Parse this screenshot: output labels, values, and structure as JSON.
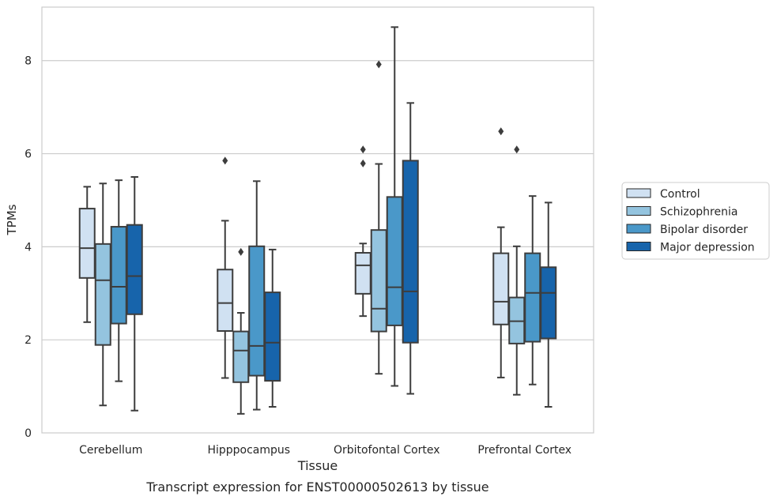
{
  "chart_data": {
    "type": "box",
    "caption": "Transcript expression for ENST00000502613 by tissue",
    "xlabel": "Tissue",
    "ylabel": "TPMs",
    "ylim": [
      0,
      9.15
    ],
    "yticks": [
      0,
      2,
      4,
      6,
      8
    ],
    "grid": true,
    "legend_position": "right",
    "categories": [
      "Cerebellum",
      "Hipppocampus",
      "Orbitofontal Cortex",
      "Prefrontal Cortex"
    ],
    "series": [
      {
        "name": "Control",
        "color": "#d0e1f2",
        "boxes": [
          {
            "whislo": 2.38,
            "q1": 3.33,
            "med": 3.97,
            "q3": 4.82,
            "whishi": 5.29,
            "fliers": []
          },
          {
            "whislo": 1.18,
            "q1": 2.19,
            "med": 2.79,
            "q3": 3.51,
            "whishi": 4.56,
            "fliers": [
              5.85
            ]
          },
          {
            "whislo": 2.51,
            "q1": 2.99,
            "med": 3.6,
            "q3": 3.87,
            "whishi": 4.07,
            "fliers": [
              5.79,
              6.09
            ]
          },
          {
            "whislo": 1.19,
            "q1": 2.33,
            "med": 2.82,
            "q3": 3.86,
            "whishi": 4.42,
            "fliers": [
              6.48
            ]
          }
        ]
      },
      {
        "name": "Schizophrenia",
        "color": "#94c4df",
        "boxes": [
          {
            "whislo": 0.59,
            "q1": 1.89,
            "med": 3.28,
            "q3": 4.06,
            "whishi": 5.36,
            "fliers": []
          },
          {
            "whislo": 0.41,
            "q1": 1.09,
            "med": 1.77,
            "q3": 2.18,
            "whishi": 2.58,
            "fliers": [
              3.89
            ]
          },
          {
            "whislo": 1.27,
            "q1": 2.18,
            "med": 2.67,
            "q3": 4.36,
            "whishi": 5.78,
            "fliers": [
              7.92
            ]
          },
          {
            "whislo": 0.82,
            "q1": 1.92,
            "med": 2.4,
            "q3": 2.91,
            "whishi": 4.01,
            "fliers": [
              6.09
            ]
          }
        ]
      },
      {
        "name": "Bipolar disorder",
        "color": "#4a98c9",
        "boxes": [
          {
            "whislo": 1.11,
            "q1": 2.35,
            "med": 3.14,
            "q3": 4.43,
            "whishi": 5.43,
            "fliers": []
          },
          {
            "whislo": 0.5,
            "q1": 1.23,
            "med": 1.87,
            "q3": 4.01,
            "whishi": 5.41,
            "fliers": []
          },
          {
            "whislo": 1.01,
            "q1": 2.31,
            "med": 3.13,
            "q3": 5.07,
            "whishi": 8.72,
            "fliers": []
          },
          {
            "whislo": 1.04,
            "q1": 1.96,
            "med": 3.01,
            "q3": 3.86,
            "whishi": 5.09,
            "fliers": []
          }
        ]
      },
      {
        "name": "Major depression",
        "color": "#1764ab",
        "boxes": [
          {
            "whislo": 0.48,
            "q1": 2.55,
            "med": 3.37,
            "q3": 4.47,
            "whishi": 5.5,
            "fliers": []
          },
          {
            "whislo": 0.56,
            "q1": 1.12,
            "med": 1.94,
            "q3": 3.02,
            "whishi": 3.94,
            "fliers": []
          },
          {
            "whislo": 0.84,
            "q1": 1.94,
            "med": 3.04,
            "q3": 5.85,
            "whishi": 7.09,
            "fliers": []
          },
          {
            "whislo": 0.56,
            "q1": 2.03,
            "med": 3.01,
            "q3": 3.56,
            "whishi": 4.95,
            "fliers": []
          }
        ]
      }
    ]
  }
}
